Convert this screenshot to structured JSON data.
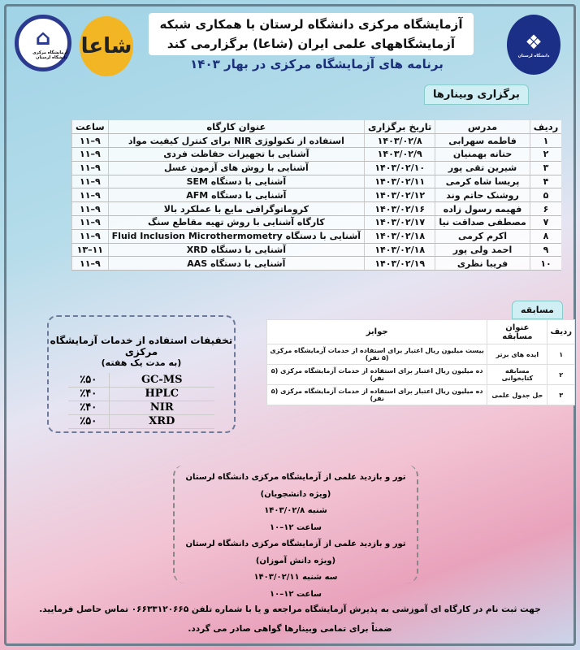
{
  "header": {
    "title_line1": "آزمایشگاه مرکزی دانشگاه لرستان با همکاری شبکه",
    "title_line2": "آزمایشگاههای علمی ایران (شاعا) برگزارمی کند",
    "subtitle": "برنامه های آزمایشگاه مرکزی در بهار ۱۴۰۳",
    "logo_left_text": "آزمایشگاه مرکزی دانشگاه لرستان",
    "logo_right_text": "دانشگاه لرستان"
  },
  "webinars": {
    "section_label": "برگزاری وبینارها",
    "headers": [
      "ردیف",
      "مدرس",
      "تاریخ برگزاری",
      "عنوان کارگاه",
      "ساعت"
    ],
    "rows": [
      [
        "۱",
        "فاطمه سهرابی",
        "۱۴۰۳/۰۲/۸",
        "استفاده از تکنولوژی NIR برای کنترل کیفیت مواد",
        "۹–۱۱"
      ],
      [
        "۲",
        "حنانه بهمنیان",
        "۱۴۰۳/۰۲/۹",
        "آشنایی با تجهیزات حفاظت فردی",
        "۹–۱۱"
      ],
      [
        "۳",
        "شیرین تقی پور",
        "۱۴۰۳/۰۲/۱۰",
        "آشنایی با روش های آزمون عسل",
        "۹–۱۱"
      ],
      [
        "۴",
        "پریسا شاه کرمی",
        "۱۴۰۳/۰۲/۱۱",
        "آشنایی با دستگاه SEM",
        "۹–۱۱"
      ],
      [
        "۵",
        "روشنک حاتم وند",
        "۱۴۰۳/۰۲/۱۲",
        "آشنایی با دستگاه AFM",
        "۹–۱۱"
      ],
      [
        "۶",
        "فهیمه رسول زاده",
        "۱۴۰۳/۰۲/۱۶",
        "کروماتوگرافی مایع با عملکرد بالا",
        "۹–۱۱"
      ],
      [
        "۷",
        "مصطفی صداقت نیا",
        "۱۴۰۳/۰۲/۱۷",
        "کارگاه آشنایی با روش تهیه مقاطع سنگ",
        "۹–۱۱"
      ],
      [
        "۸",
        "اکرم کرمی",
        "۱۴۰۳/۰۲/۱۸",
        "آشنایی با دستگاه Fluid Inclusion Microthermometry",
        "۹–۱۱"
      ],
      [
        "۹",
        "احمد ولی پور",
        "۱۴۰۳/۰۲/۱۸",
        "آشنایی با دستگاه XRD",
        "۱۱–۱۳"
      ],
      [
        "۱۰",
        "فریبا نظری",
        "۱۴۰۳/۰۲/۱۹",
        "آشنایی با دستگاه AAS",
        "۹–۱۱"
      ]
    ]
  },
  "competition": {
    "section_label": "مسابقه",
    "headers": [
      "ردیف",
      "عنوان مسابقه",
      "جوایز"
    ],
    "rows": [
      [
        "۱",
        "ایده های برتر",
        "بیست میلیون ریال اعتبار برای استفاده از خدمات آزمایشگاه مرکزی (۵ نفر)"
      ],
      [
        "۲",
        "مسابقه کتابخوانی",
        "ده میلیون ریال اعتبار برای استفاده از خدمات آزمایشگاه مرکزی (۵ نفر)"
      ],
      [
        "۳",
        "حل جدول علمی",
        "ده میلیون ریال اعتبار برای استفاده از خدمات آزمایشگاه مرکزی (۵ نفر)"
      ]
    ]
  },
  "discounts": {
    "title": "تخفیفات استفاده از خدمات آزمایشگاه مرکزی",
    "subtitle": "(به مدت یک هفته)",
    "rows": [
      [
        "GC-MS",
        "٪۵۰"
      ],
      [
        "HPLC",
        "٪۴۰"
      ],
      [
        "NIR",
        "٪۴۰"
      ],
      [
        "XRD",
        "٪۵۰"
      ]
    ]
  },
  "tours": {
    "lines": [
      "تور و بازدید علمی از آزمایشگاه مرکزی دانشگاه لرستان (ویژه دانشجویان)",
      "شنبه ۱۴۰۳/۰۲/۸",
      "ساعت ۱۲–۱۰",
      "تور و بازدید علمی از آزمایشگاه مرکزی دانشگاه لرستان (ویژه دانش آموزان)",
      "سه شنبه ۱۴۰۳/۰۲/۱۱",
      "ساعت ۱۲–۱۰"
    ]
  },
  "footer": {
    "line1": "جهت ثبت نام در کارگاه ای آموزشی به پذیرش آزمایشگاه مراجعه و یا با شماره تلفن ۰۶۶۳۳۱۲۰۶۶۵ تماس حاصل فرمایید.",
    "line2": "ضمناً برای تمامی وبینارها گواهی صادر می گردد."
  },
  "colors": {
    "subtitle": "#1b2f7a",
    "logo_blue": "#1c2f86",
    "logo_gold": "#f2b523"
  }
}
